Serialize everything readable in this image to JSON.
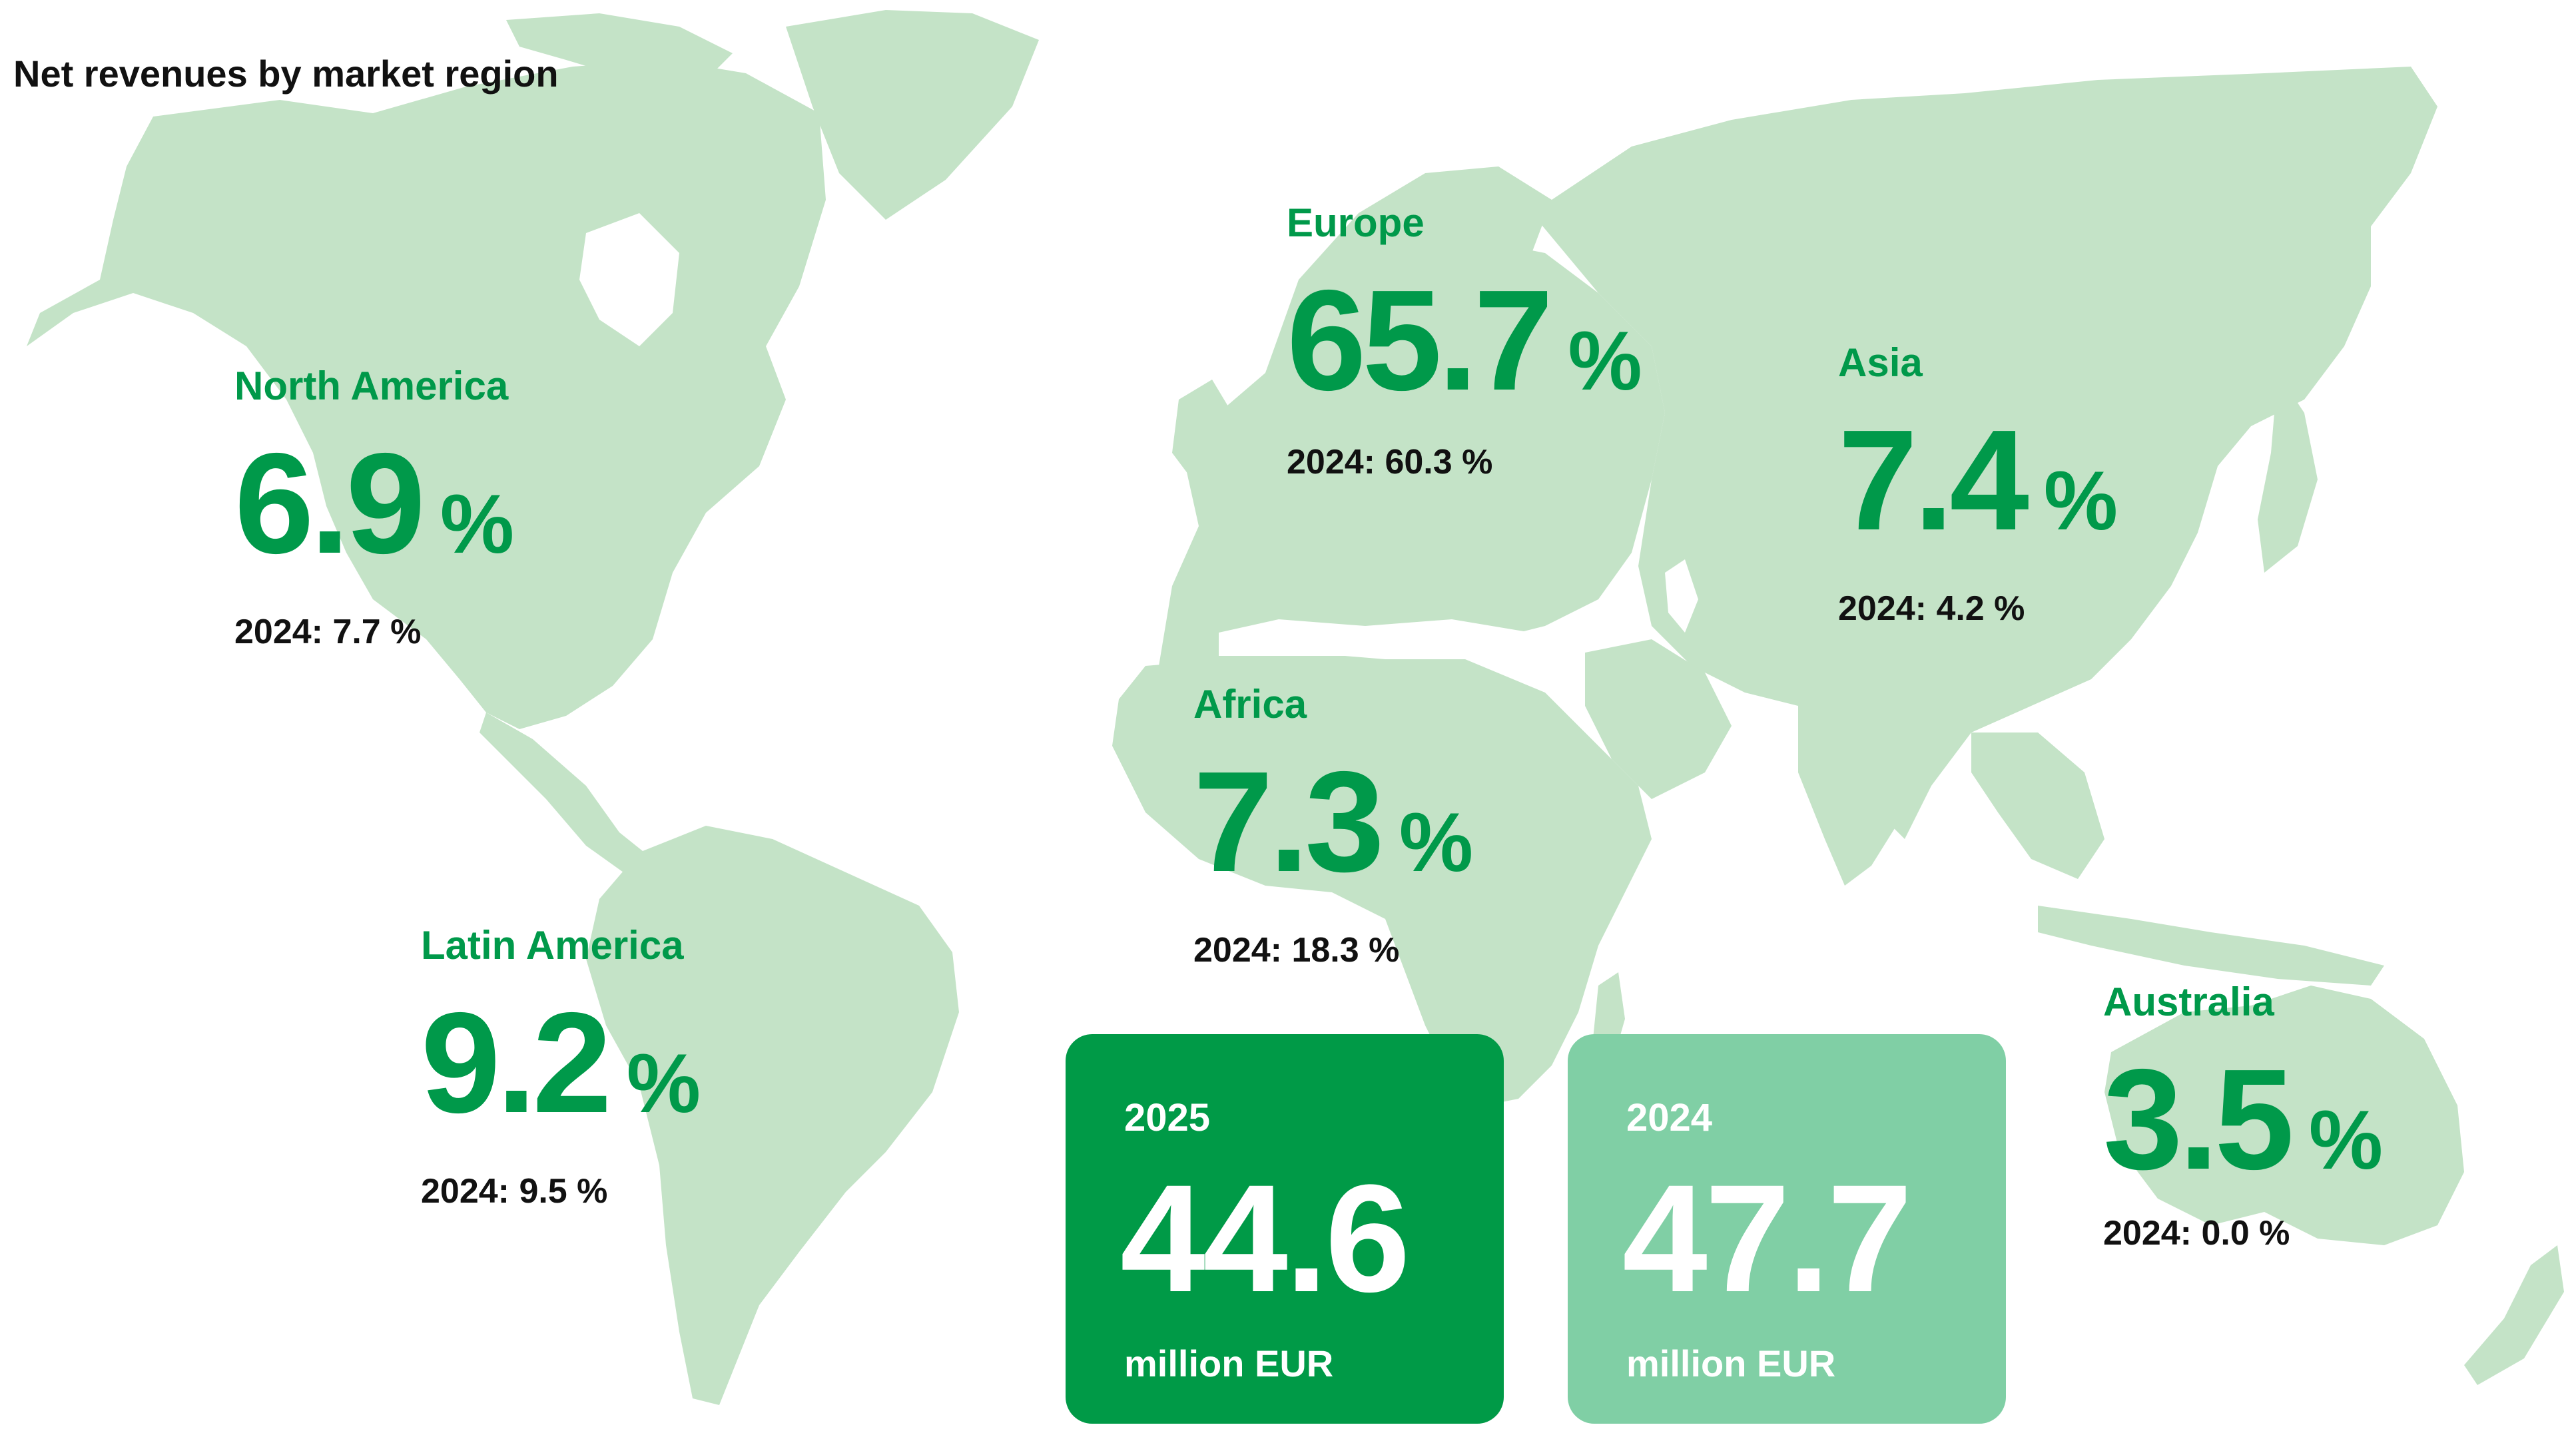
{
  "title": "Net revenues by market region",
  "colors": {
    "accent": "#00994a",
    "land": "#c4e3c7",
    "card_current": "#009a47",
    "card_previous": "#80cfa5"
  },
  "regions": {
    "north_america": {
      "name": "North America",
      "value": "6.9",
      "pct": "%",
      "prev": "2024: 7.7 %"
    },
    "europe": {
      "name": "Europe",
      "value": "65.7",
      "pct": "%",
      "prev": "2024: 60.3 %"
    },
    "asia": {
      "name": "Asia",
      "value": "7.4",
      "pct": "%",
      "prev": "2024: 4.2 %"
    },
    "africa": {
      "name": "Africa",
      "value": "7.3",
      "pct": "%",
      "prev": "2024: 18.3 %"
    },
    "latin_america": {
      "name": "Latin America",
      "value": "9.2",
      "pct": "%",
      "prev": "2024: 9.5 %"
    },
    "australia": {
      "name": "Australia",
      "value": "3.5",
      "pct": "%",
      "prev": "2024: 0.0 %"
    }
  },
  "totals": [
    {
      "year": "2025",
      "value": "44.6",
      "unit": "million EUR"
    },
    {
      "year": "2024",
      "value": "47.7",
      "unit": "million EUR"
    }
  ]
}
